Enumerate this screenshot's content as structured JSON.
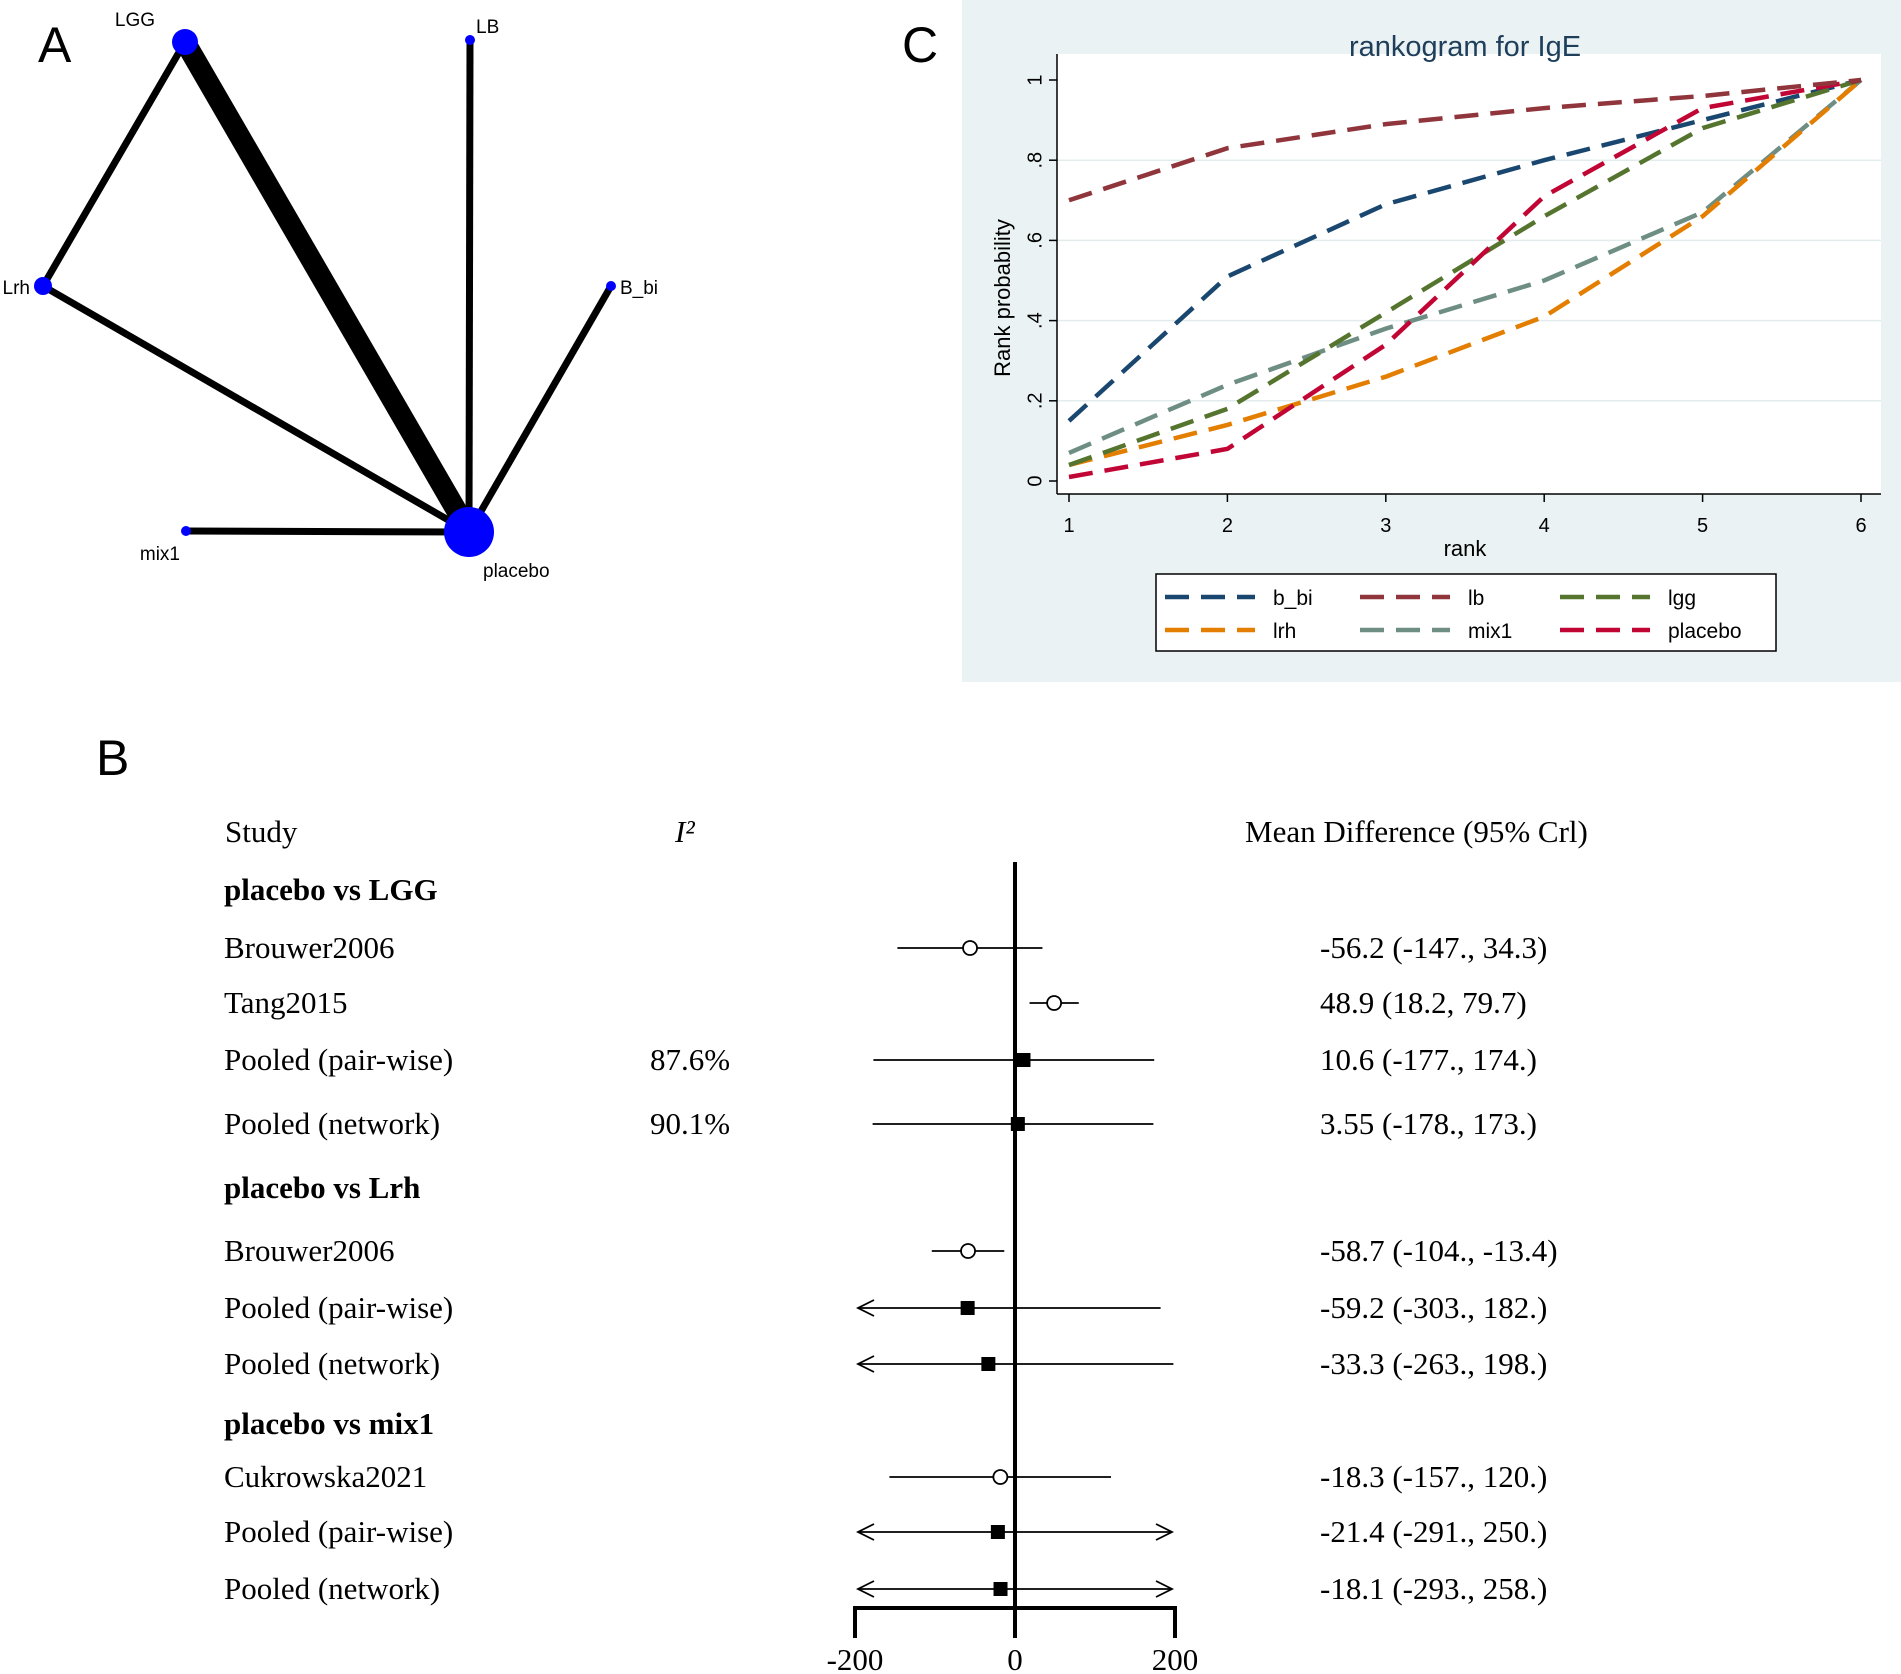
{
  "panels": {
    "A": "A",
    "B": "B",
    "C": "C"
  },
  "colors": {
    "node": "#0000ff",
    "edge": "#000000",
    "c_background": "#eaf2f3",
    "b_bi": "#1a476f",
    "lb": "#90353b",
    "lgg": "#55752f",
    "lrh": "#e37e00",
    "mix1": "#6e8e84",
    "placebo": "#c10534"
  },
  "network": {
    "nodes": [
      {
        "id": "LGG",
        "label": "LGG",
        "size": 13
      },
      {
        "id": "LB",
        "label": "LB",
        "size": 5
      },
      {
        "id": "Lrh",
        "label": "Lrh",
        "size": 9
      },
      {
        "id": "B_bi",
        "label": "B_bi",
        "size": 5
      },
      {
        "id": "mix1",
        "label": "mix1",
        "size": 5
      },
      {
        "id": "placebo",
        "label": "placebo",
        "size": 25
      }
    ],
    "edges": [
      {
        "from": "LGG",
        "to": "Lrh",
        "weight": 1
      },
      {
        "from": "LGG",
        "to": "placebo",
        "weight": 3
      },
      {
        "from": "LB",
        "to": "placebo",
        "weight": 1
      },
      {
        "from": "Lrh",
        "to": "placebo",
        "weight": 1
      },
      {
        "from": "B_bi",
        "to": "placebo",
        "weight": 1
      },
      {
        "from": "mix1",
        "to": "placebo",
        "weight": 1
      }
    ]
  },
  "chart_data": [
    {
      "type": "line",
      "title": "rankogram for IgE",
      "xlabel": "rank",
      "ylabel": "Rank probability",
      "x": [
        1,
        2,
        3,
        4,
        5,
        6
      ],
      "xlim": [
        1,
        6
      ],
      "ylim": [
        0,
        1
      ],
      "yticks": [
        0,
        0.2,
        0.4,
        0.6,
        0.8,
        1
      ],
      "ytick_labels": [
        "0",
        ".2",
        ".4",
        ".6",
        ".8",
        "1"
      ],
      "xtick_labels": [
        "1",
        "2",
        "3",
        "4",
        "5",
        "6"
      ],
      "legend_placement": "bottom",
      "series": [
        {
          "name": "b_bi",
          "values": [
            0.15,
            0.51,
            0.69,
            0.8,
            0.9,
            1.0
          ]
        },
        {
          "name": "lb",
          "values": [
            0.7,
            0.83,
            0.89,
            0.93,
            0.96,
            1.0
          ]
        },
        {
          "name": "lgg",
          "values": [
            0.04,
            0.18,
            0.42,
            0.66,
            0.88,
            1.0
          ]
        },
        {
          "name": "lrh",
          "values": [
            0.04,
            0.14,
            0.26,
            0.41,
            0.66,
            1.0
          ]
        },
        {
          "name": "mix1",
          "values": [
            0.07,
            0.24,
            0.38,
            0.5,
            0.67,
            1.0
          ]
        },
        {
          "name": "placebo",
          "values": [
            0.01,
            0.08,
            0.34,
            0.71,
            0.93,
            1.0
          ]
        }
      ]
    },
    {
      "type": "forest",
      "xlim": [
        -200,
        200
      ],
      "xtick_labels": [
        "-200",
        "0",
        "200"
      ],
      "headers": {
        "study": "Study",
        "i2": "I²",
        "md": "Mean Difference (95% Crl)"
      },
      "rows": [
        {
          "kind": "group",
          "label": "placebo vs LGG"
        },
        {
          "kind": "study",
          "label": "Brouwer2006",
          "i2": "",
          "est": -56.2,
          "lo": -147,
          "hi": 34.3,
          "ci_text": "-56.2 (-147., 34.3)"
        },
        {
          "kind": "study",
          "label": "Tang2015",
          "i2": "",
          "est": 48.9,
          "lo": 18.2,
          "hi": 79.7,
          "ci_text": "48.9 (18.2, 79.7)"
        },
        {
          "kind": "pooled",
          "label": "Pooled (pair-wise)",
          "i2": "87.6%",
          "est": 10.6,
          "lo": -177,
          "hi": 174,
          "ci_text": "10.6 (-177., 174.)"
        },
        {
          "kind": "pooled",
          "label": "Pooled (network)",
          "i2": "90.1%",
          "est": 3.55,
          "lo": -178,
          "hi": 173,
          "ci_text": "3.55 (-178., 173.)"
        },
        {
          "kind": "group",
          "label": "placebo vs Lrh"
        },
        {
          "kind": "study",
          "label": "Brouwer2006",
          "i2": "",
          "est": -58.7,
          "lo": -104,
          "hi": -13.4,
          "ci_text": "-58.7 (-104., -13.4)"
        },
        {
          "kind": "pooled",
          "label": "Pooled (pair-wise)",
          "i2": "",
          "est": -59.2,
          "lo": -303,
          "hi": 182,
          "ci_text": "-59.2 (-303., 182.)"
        },
        {
          "kind": "pooled",
          "label": "Pooled (network)",
          "i2": "",
          "est": -33.3,
          "lo": -263,
          "hi": 198,
          "ci_text": "-33.3 (-263., 198.)"
        },
        {
          "kind": "group",
          "label": "placebo vs mix1"
        },
        {
          "kind": "study",
          "label": "Cukrowska2021",
          "i2": "",
          "est": -18.3,
          "lo": -157,
          "hi": 120,
          "ci_text": "-18.3 (-157., 120.)"
        },
        {
          "kind": "pooled",
          "label": "Pooled (pair-wise)",
          "i2": "",
          "est": -21.4,
          "lo": -291,
          "hi": 250,
          "ci_text": "-21.4 (-291., 250.)"
        },
        {
          "kind": "pooled",
          "label": "Pooled (network)",
          "i2": "",
          "est": -18.1,
          "lo": -293,
          "hi": 258,
          "ci_text": "-18.1 (-293., 258.)"
        }
      ]
    }
  ]
}
